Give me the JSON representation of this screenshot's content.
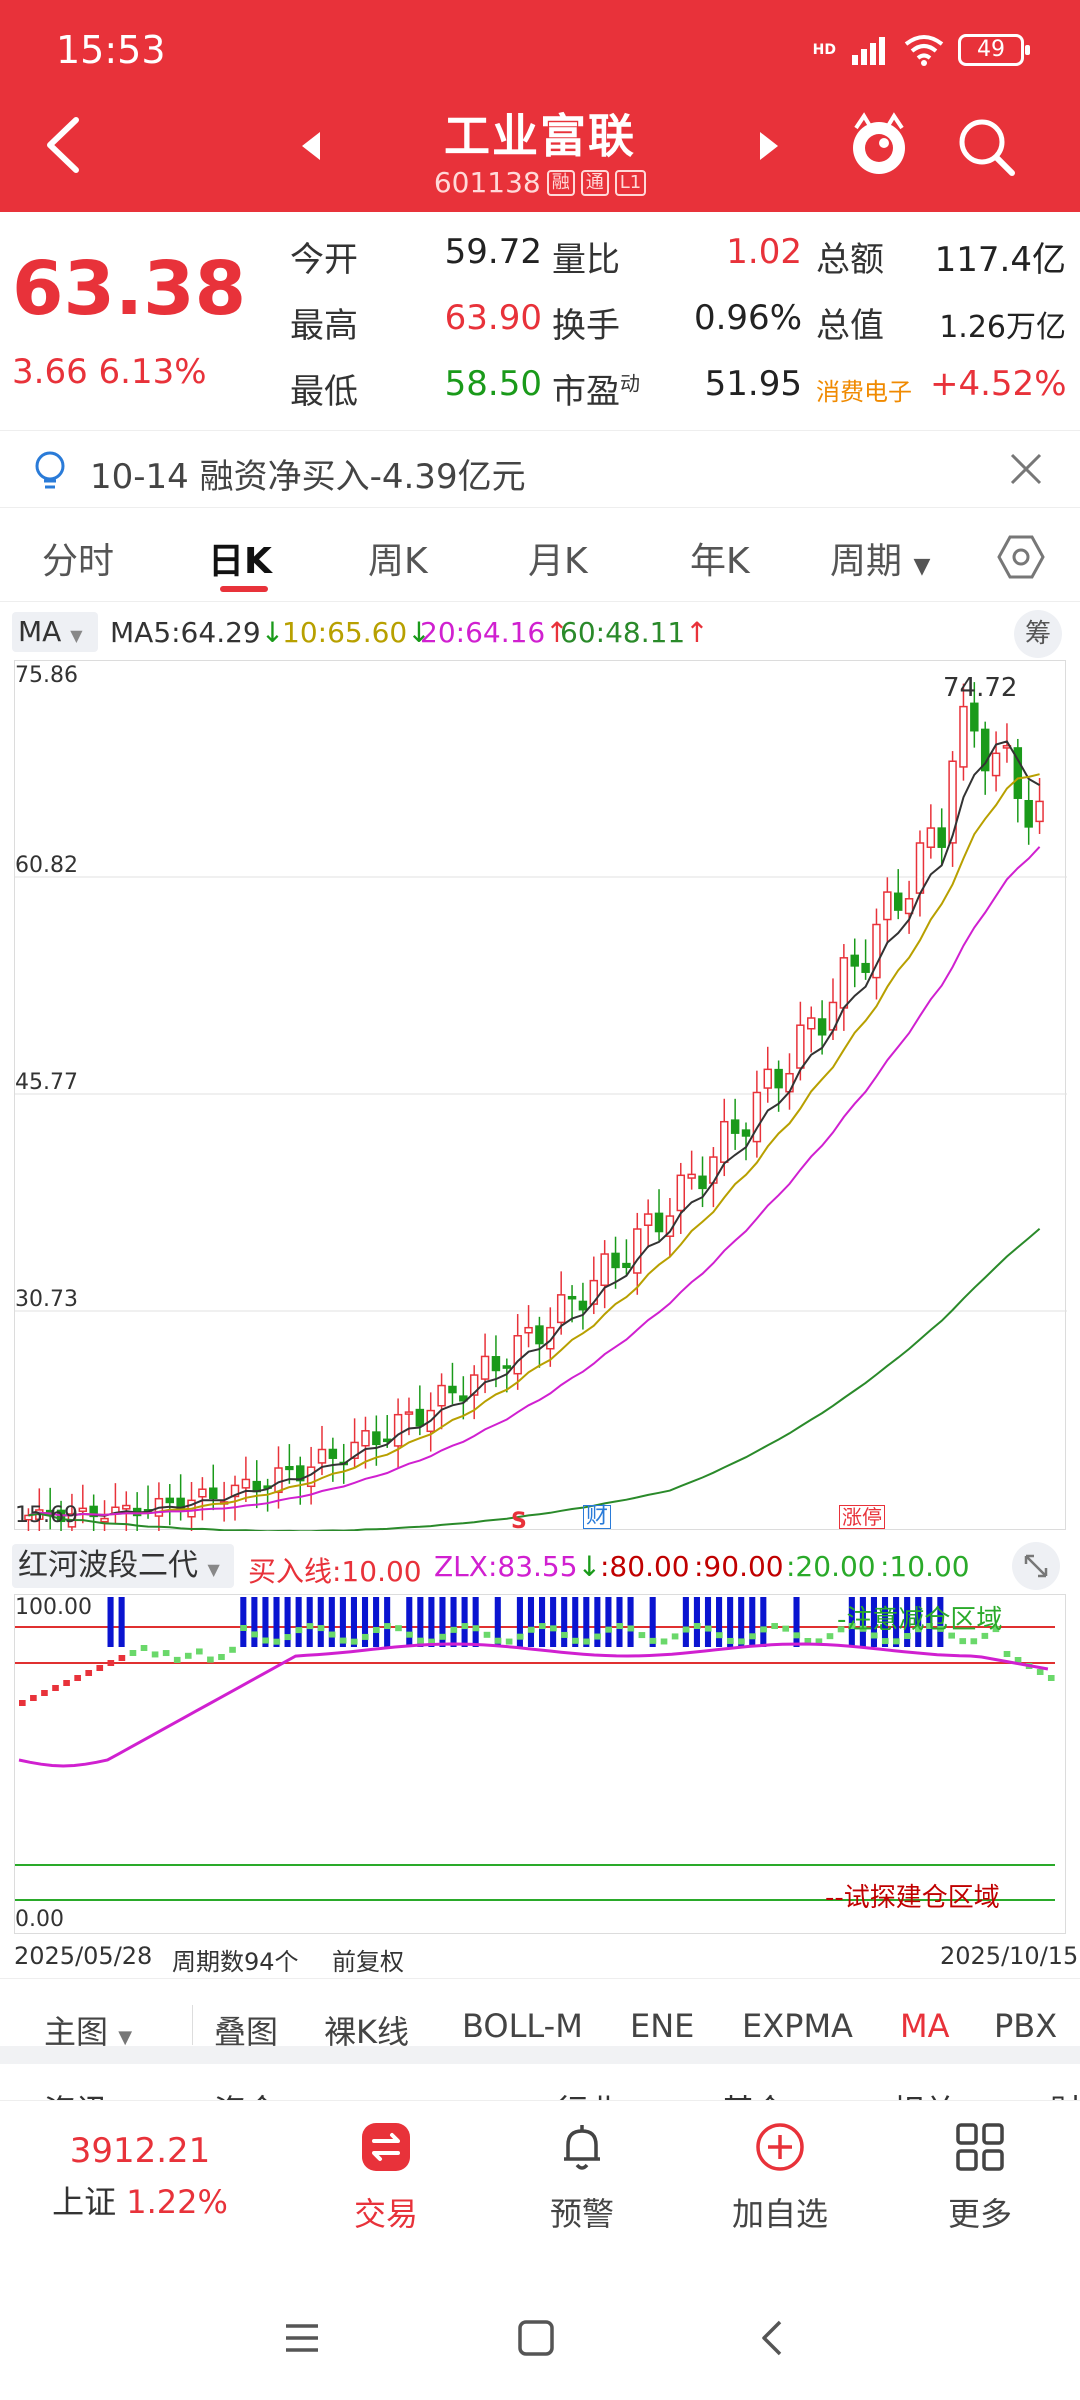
{
  "status": {
    "time": "15:53",
    "battery": "49",
    "network": "HD"
  },
  "header": {
    "stock_name": "工业富联",
    "stock_code": "601138",
    "tags": [
      "融",
      "通",
      "L1"
    ]
  },
  "quote": {
    "price": "63.38",
    "change": "3.66",
    "change_pct": "6.13%",
    "open_label": "今开",
    "open": "59.72",
    "vol_ratio_label": "量比",
    "vol_ratio": "1.02",
    "amount_label": "总额",
    "amount": "117.4亿",
    "high_label": "最高",
    "high": "63.90",
    "turnover_label": "换手",
    "turnover": "0.96%",
    "mktcap_label": "总值",
    "mktcap": "1.26万亿",
    "low_label": "最低",
    "low": "58.50",
    "pe_label": "市盈",
    "pe_sup": "动",
    "pe": "51.95",
    "sector_name": "消费电子",
    "sector_pct": "+4.52%"
  },
  "news": {
    "text": "10-14 融资净买入-4.39亿元"
  },
  "period_tabs": [
    "分时",
    "日K",
    "周K",
    "月K",
    "年K",
    "周期"
  ],
  "active_period": "日K",
  "ma": {
    "selector": "MA",
    "ma5": "MA5:64.29",
    "ma10": "10:65.60",
    "ma20": "20:64.16",
    "ma60": "60:48.11",
    "chou": "筹",
    "colors": {
      "ma5": "#333333",
      "ma10": "#b8a000",
      "ma20": "#d020d0",
      "ma60": "#2a8a2a",
      "up": "#e8323a",
      "down": "#1a9a1a"
    }
  },
  "main_chart": {
    "y_labels": [
      "75.86",
      "60.82",
      "45.77",
      "30.73",
      "15.69"
    ],
    "peak_label": "74.72",
    "markers": [
      "S",
      "财",
      "涨停"
    ]
  },
  "indicator": {
    "name": "红河波段二代",
    "buy_line": "买入线:10.00",
    "zlx": "ZLX:83.55",
    "v80": ":80.00",
    "v90": ":90.00",
    "v20": ":20.00",
    "v10": ":10.00",
    "y_top": "100.00",
    "y_bottom": "0.00",
    "zone_top": "-注意减仓区域",
    "zone_bottom": "--试探建仓区域"
  },
  "date_row": {
    "start": "2025/05/28",
    "period_count": "周期数94个",
    "adjust": "前复权",
    "end": "2025/10/15"
  },
  "indicator_tabs": {
    "main": "主图",
    "items": [
      "叠图",
      "裸K线",
      "BOLL-M",
      "ENE",
      "EXPMA",
      "MA",
      "PBX"
    ],
    "active": "MA"
  },
  "partial_row": [
    "资讯",
    "资金",
    "行业",
    "基金",
    "相关",
    "财"
  ],
  "bottom_nav": {
    "index_value": "3912.21",
    "index_name": "上证",
    "index_pct": "1.22%",
    "items": [
      "交易",
      "预警",
      "加自选",
      "更多"
    ]
  }
}
